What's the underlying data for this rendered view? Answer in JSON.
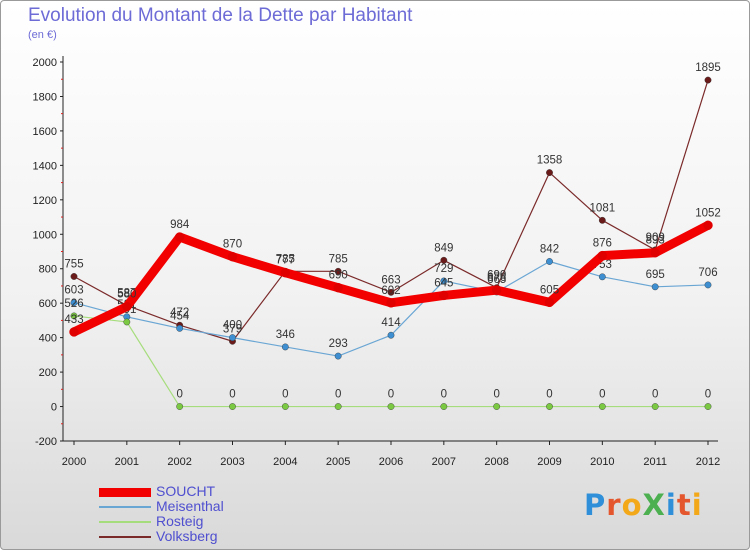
{
  "title": "Evolution du Montant de la Dette par Habitant",
  "subtitle": "(en €)",
  "logo": {
    "text": "ProXiti",
    "letters": [
      "P",
      "r",
      "o",
      "X",
      "i",
      "t",
      "i"
    ],
    "colors": [
      "#2f8fd8",
      "#e4572e",
      "#f2a818",
      "#4caf50",
      "#2f8fd8",
      "#e4572e",
      "#f2a818"
    ]
  },
  "chart_data": {
    "type": "line",
    "categories": [
      "2000",
      "2001",
      "2002",
      "2003",
      "2004",
      "2005",
      "2006",
      "2007",
      "2008",
      "2009",
      "2010",
      "2011",
      "2012"
    ],
    "ylim": [
      -200,
      2000
    ],
    "yticks": [
      "-200",
      "0",
      "200",
      "400",
      "600",
      "800",
      "1000",
      "1200",
      "1400",
      "1600",
      "1800",
      "2000"
    ],
    "grid": false,
    "legend_position": "bottom-left",
    "series": [
      {
        "name": "Volksberg",
        "color": "#7b2a2a",
        "marker": "#6b1a1a",
        "width": 1.2,
        "values": [
          755,
          587,
          472,
          379,
          785,
          785,
          663,
          849,
          690,
          1358,
          1081,
          909,
          1895
        ],
        "labels": [
          "755",
          "587",
          "472",
          "379",
          "785",
          "785",
          "663",
          "849",
          "690",
          "1358",
          "1081",
          "909",
          "1895"
        ]
      },
      {
        "name": "Meisenthal",
        "color": "#6aa6d4",
        "marker": "#3d8fd1",
        "width": 1.2,
        "values": [
          603,
          521,
          454,
          400,
          346,
          293,
          414,
          729,
          665,
          842,
          753,
          695,
          706
        ],
        "labels": [
          "603",
          "521",
          "454",
          "400",
          "346",
          "293",
          "414",
          "729",
          "665",
          "842",
          "753",
          "695",
          "706"
        ]
      },
      {
        "name": "Rosteig",
        "color": "#a6dd7c",
        "marker": "#7bc943",
        "width": 1.2,
        "values": [
          526,
          491,
          0,
          0,
          0,
          0,
          0,
          0,
          0,
          0,
          0,
          0,
          0
        ],
        "labels": [
          "526",
          "491",
          "0",
          "0",
          "0",
          "0",
          "0",
          "0",
          "0",
          "0",
          "0",
          "0",
          "0"
        ]
      },
      {
        "name": "SOUCHT",
        "color": "#f20000",
        "marker": "#e00000",
        "width": 9,
        "values": [
          433,
          580,
          984,
          870,
          777,
          690,
          602,
          645,
          676,
          605,
          876,
          893,
          1052
        ],
        "labels": [
          "433",
          "580",
          "984",
          "870",
          "777",
          "690",
          "602",
          "645",
          "676",
          "605",
          "876",
          "893",
          "1052"
        ]
      }
    ],
    "legend": [
      {
        "name": "SOUCHT",
        "color": "#f20000",
        "thickness": 9
      },
      {
        "name": "Meisenthal",
        "color": "#6aa6d4",
        "thickness": 2
      },
      {
        "name": "Rosteig",
        "color": "#a6dd7c",
        "thickness": 2
      },
      {
        "name": "Volksberg",
        "color": "#7b2a2a",
        "thickness": 2
      }
    ]
  }
}
